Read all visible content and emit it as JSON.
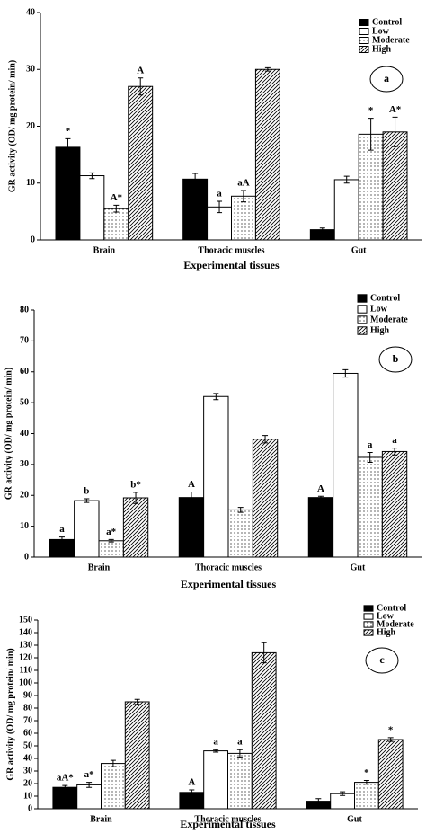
{
  "chart_data": [
    {
      "type": "bar",
      "panel_label": "a",
      "y_label": "GR activity (OD/ mg protein/ min)",
      "x_label": "Experimental tissues",
      "categories": [
        "Brain",
        "Thoracic muscles",
        "Gut"
      ],
      "series": [
        {
          "name": "Control",
          "color": "#000000",
          "values": [
            16.3,
            10.7,
            1.8
          ],
          "errors": [
            1.5,
            1.0,
            0.3
          ],
          "annotations": [
            "*",
            null,
            null
          ]
        },
        {
          "name": "Low",
          "color": "#ffffff",
          "values": [
            11.3,
            5.8,
            10.6
          ],
          "errors": [
            0.5,
            1.0,
            0.6
          ],
          "annotations": [
            null,
            "a",
            null
          ]
        },
        {
          "name": "Moderate",
          "color": "#ffffff",
          "pattern": "dots",
          "values": [
            5.5,
            7.7,
            18.6
          ],
          "errors": [
            0.6,
            1.0,
            2.8
          ],
          "annotations": [
            "A*",
            "aA",
            "*"
          ]
        },
        {
          "name": "High",
          "color": "#ffffff",
          "pattern": "hatch",
          "values": [
            27,
            30,
            19
          ],
          "errors": [
            1.5,
            0.3,
            2.6
          ],
          "annotations": [
            "A",
            null,
            "A*"
          ]
        }
      ],
      "ylim": [
        0,
        40
      ],
      "yticks": [
        0,
        10,
        20,
        30,
        40
      ]
    },
    {
      "type": "bar",
      "panel_label": "b",
      "y_label": "GR activity (OD/ mg protein/ min)",
      "x_label": "Experimental tissues",
      "categories": [
        "Brain",
        "Thoracic muscles",
        "Gut"
      ],
      "series": [
        {
          "name": "Control",
          "color": "#000000",
          "values": [
            5.7,
            19.3,
            19.3
          ],
          "errors": [
            0.8,
            1.8,
            0.4
          ],
          "annotations": [
            "a",
            "A",
            "A"
          ]
        },
        {
          "name": "Low",
          "color": "#ffffff",
          "values": [
            18.3,
            52,
            59.5
          ],
          "errors": [
            0.6,
            1.0,
            1.2
          ],
          "annotations": [
            "b",
            null,
            null
          ]
        },
        {
          "name": "Moderate",
          "color": "#ffffff",
          "pattern": "dots",
          "values": [
            5.3,
            15.3,
            32.3
          ],
          "errors": [
            0.4,
            0.8,
            1.6
          ],
          "annotations": [
            "a*",
            null,
            "a"
          ]
        },
        {
          "name": "High",
          "color": "#ffffff",
          "pattern": "hatch",
          "values": [
            19.2,
            38.2,
            34.2
          ],
          "errors": [
            1.8,
            1.2,
            1.1
          ],
          "annotations": [
            "b*",
            null,
            "a"
          ]
        }
      ],
      "ylim": [
        0,
        80
      ],
      "yticks": [
        0,
        10,
        20,
        30,
        40,
        50,
        60,
        70,
        80
      ]
    },
    {
      "type": "bar",
      "panel_label": "c",
      "y_label": "GR activity (OD/ mg protein/ min)",
      "x_label": "Experimental tissues",
      "categories": [
        "Brain",
        "Thoracic muscles",
        "Gut"
      ],
      "series": [
        {
          "name": "Control",
          "color": "#000000",
          "values": [
            17,
            13,
            6
          ],
          "errors": [
            1.5,
            2,
            2
          ],
          "annotations": [
            "aA*",
            "A",
            null
          ]
        },
        {
          "name": "Low",
          "color": "#ffffff",
          "values": [
            19,
            46,
            12
          ],
          "errors": [
            2,
            1,
            1.5
          ],
          "annotations": [
            "a*",
            "a",
            null
          ]
        },
        {
          "name": "Moderate",
          "color": "#ffffff",
          "pattern": "dots",
          "values": [
            36,
            44,
            21
          ],
          "errors": [
            2.5,
            3,
            1.5
          ],
          "annotations": [
            null,
            "a",
            "*"
          ]
        },
        {
          "name": "High",
          "color": "#ffffff",
          "pattern": "hatch",
          "values": [
            85,
            124,
            55
          ],
          "errors": [
            2,
            8,
            1.5
          ],
          "annotations": [
            null,
            null,
            "*"
          ]
        }
      ],
      "ylim": [
        0,
        150
      ],
      "yticks": [
        0,
        10,
        20,
        30,
        40,
        50,
        60,
        70,
        80,
        90,
        100,
        110,
        120,
        130,
        140,
        150
      ]
    }
  ]
}
